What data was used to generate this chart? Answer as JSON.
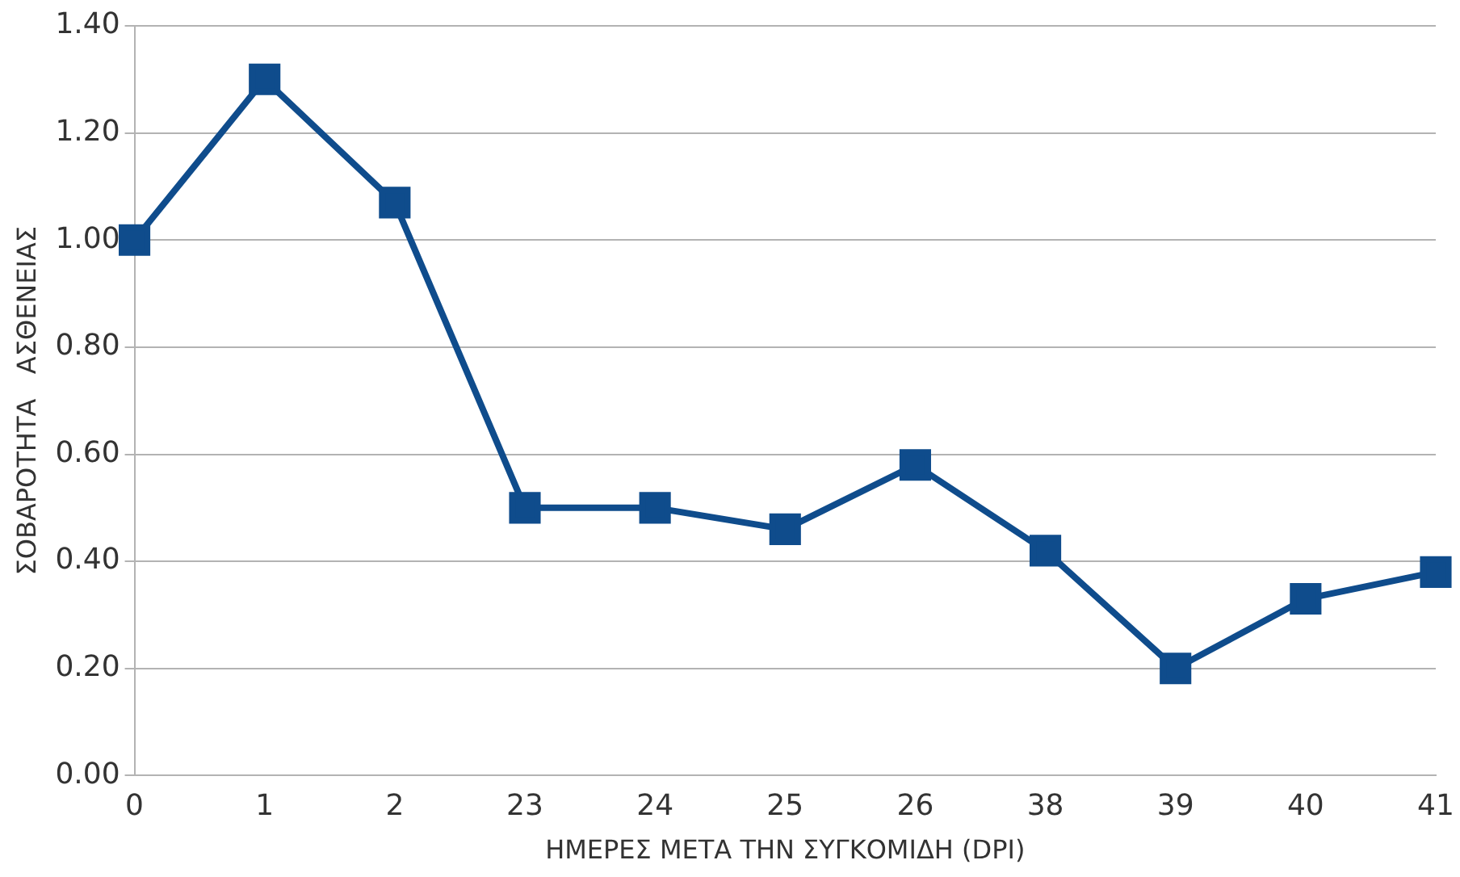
{
  "chart_data": {
    "type": "line",
    "xlabel": "ΗΜΕΡΕΣ ΜΕΤΑ ΤΗΝ ΣΥΓΚΟΜΙΔΗ (DPI)",
    "ylabel": "ΣΟΒΑΡΟΤΗΤΑ   ΑΣΘΕΝΕΙΑΣ",
    "categories": [
      "0",
      "1",
      "2",
      "23",
      "24",
      "25",
      "26",
      "38",
      "39",
      "40",
      "41"
    ],
    "series": [
      {
        "color": "#0f4c8c",
        "values": [
          1.0,
          1.3,
          1.07,
          0.5,
          0.5,
          0.46,
          0.58,
          0.42,
          0.2,
          0.33,
          0.38
        ]
      }
    ],
    "ylim": [
      0,
      1.4
    ],
    "yticks": [
      {
        "value": 0,
        "label": "0.00"
      },
      {
        "value": 0.2,
        "label": "0.20"
      },
      {
        "value": 0.4,
        "label": "0.40"
      },
      {
        "value": 0.6,
        "label": "0.60"
      },
      {
        "value": 0.8,
        "label": "0.80"
      },
      {
        "value": 1.0,
        "label": "1.00"
      },
      {
        "value": 1.2,
        "label": "1.20"
      },
      {
        "value": 1.4,
        "label": "1.40"
      }
    ],
    "grid": "y",
    "legend": false,
    "marker": "square",
    "line_style": "solid"
  }
}
